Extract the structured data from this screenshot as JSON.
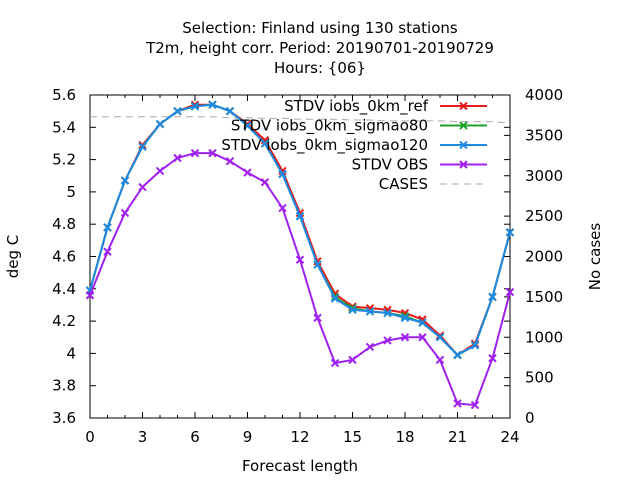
{
  "chart_data": {
    "type": "line",
    "title": [
      "Selection: Finland using   130 stations",
      "T2m, height corr.   Period: 20190701-20190729",
      "Hours: {06}"
    ],
    "xlabel": "Forecast length",
    "ylabel": "deg C",
    "y2label": "No cases",
    "xlim": [
      0,
      24
    ],
    "ylim": [
      3.6,
      5.6
    ],
    "y2lim": [
      0,
      4000
    ],
    "xticks": [
      "0",
      "3",
      "6",
      "9",
      "12",
      "15",
      "18",
      "21",
      "24"
    ],
    "yticks": [
      "3.6",
      "3.8",
      "4",
      "4.2",
      "4.4",
      "4.6",
      "4.8",
      "5",
      "5.2",
      "5.4",
      "5.6"
    ],
    "y2ticks": [
      "0",
      "500",
      "1000",
      "1500",
      "2000",
      "2500",
      "3000",
      "3500",
      "4000"
    ],
    "grid": false,
    "legend_position": "top-right",
    "x": [
      0,
      1,
      2,
      3,
      4,
      5,
      6,
      7,
      8,
      9,
      10,
      11,
      12,
      13,
      14,
      15,
      16,
      17,
      18,
      19,
      20,
      21,
      22,
      23,
      24
    ],
    "series": [
      {
        "name": "STDV iobs_0km_ref",
        "color": "#e41a1c",
        "marker": "x",
        "axis": "left",
        "values": [
          4.39,
          4.78,
          5.07,
          5.29,
          5.42,
          5.5,
          5.54,
          5.54,
          5.5,
          5.42,
          5.32,
          5.13,
          4.87,
          4.57,
          4.37,
          4.29,
          4.28,
          4.27,
          4.25,
          4.21,
          4.11,
          3.99,
          4.06,
          4.35,
          4.75
        ]
      },
      {
        "name": "STDV iobs_0km_sigmao80",
        "color": "#1fa32b",
        "marker": "x",
        "axis": "left",
        "values": [
          4.39,
          4.78,
          5.07,
          5.28,
          5.42,
          5.5,
          5.53,
          5.54,
          5.5,
          5.41,
          5.3,
          5.11,
          4.85,
          4.55,
          4.35,
          4.28,
          4.26,
          4.25,
          4.23,
          4.19,
          4.1,
          3.99,
          4.05,
          4.35,
          4.75
        ]
      },
      {
        "name": "STDV iobs_0km_sigmao120",
        "color": "#1e88e5",
        "marker": "x",
        "axis": "left",
        "values": [
          4.39,
          4.78,
          5.07,
          5.28,
          5.42,
          5.5,
          5.53,
          5.54,
          5.5,
          5.41,
          5.3,
          5.11,
          4.85,
          4.55,
          4.34,
          4.27,
          4.26,
          4.25,
          4.22,
          4.19,
          4.1,
          3.99,
          4.05,
          4.35,
          4.75
        ]
      },
      {
        "name": "STDV OBS",
        "color": "#a020f0",
        "marker": "x",
        "axis": "left",
        "values": [
          4.36,
          4.63,
          4.87,
          5.03,
          5.13,
          5.21,
          5.24,
          5.24,
          5.19,
          5.12,
          5.06,
          4.9,
          4.58,
          4.22,
          3.94,
          3.96,
          4.04,
          4.08,
          4.1,
          4.1,
          3.96,
          3.69,
          3.68,
          3.97,
          4.38
        ]
      },
      {
        "name": "CASES",
        "color": "#aaaaaa",
        "marker": "none",
        "dash": true,
        "axis": "right",
        "values": [
          3730,
          3730,
          3730,
          3730,
          3730,
          3730,
          3730,
          3730,
          3720,
          3720,
          3710,
          3710,
          3700,
          3700,
          3700,
          3690,
          3690,
          3680,
          3680,
          3680,
          3680,
          3670,
          3670,
          3670,
          3650
        ]
      }
    ]
  }
}
